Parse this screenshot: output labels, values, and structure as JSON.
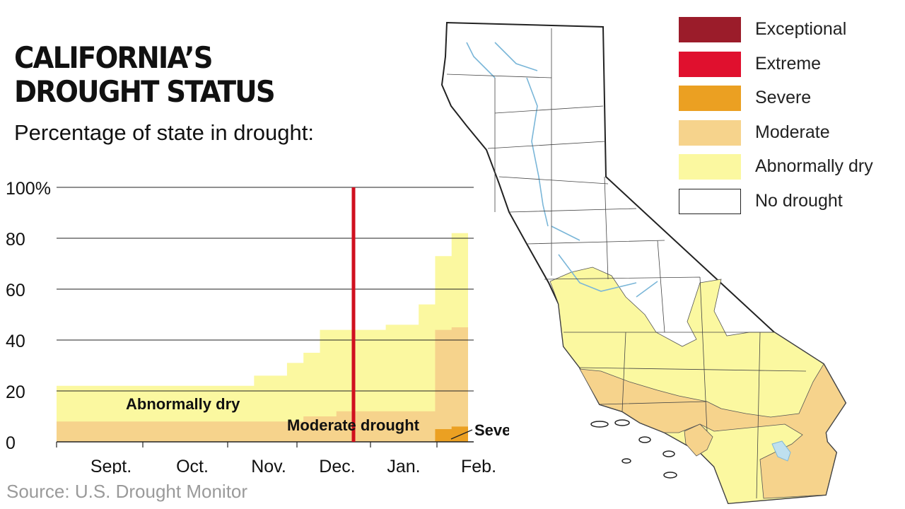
{
  "title_line1": "CALIFORNIA’S",
  "title_line2": "DROUGHT STATUS",
  "subtitle": "Percentage of state in drought:",
  "source": "Source: U.S. Drought Monitor",
  "legend": [
    {
      "label": "Exceptional",
      "color": "#9b1c2a"
    },
    {
      "label": "Extreme",
      "color": "#e0102e"
    },
    {
      "label": "Severe",
      "color": "#eba022"
    },
    {
      "label": "Moderate",
      "color": "#f6d38c"
    },
    {
      "label": "Abnormally dry",
      "color": "#fbf8a0"
    },
    {
      "label": "No drought",
      "color": "#ffffff"
    }
  ],
  "chart_data": {
    "type": "area",
    "y_ticks": [
      "0",
      "20",
      "40",
      "60",
      "80",
      "100%"
    ],
    "ylim": [
      0,
      100
    ],
    "x_tick_labels": [
      "Sept.",
      "Oct.",
      "Nov.",
      "Dec.",
      "Jan.",
      "Feb."
    ],
    "series": [
      {
        "name": "Abnormally dry",
        "color": "#fbf8a0",
        "values": [
          22,
          22,
          22,
          22,
          22,
          22,
          22,
          22,
          22,
          22,
          22,
          22,
          26,
          26,
          31,
          35,
          44,
          44,
          44,
          44,
          46,
          46,
          54,
          73,
          82
        ]
      },
      {
        "name": "Moderate drought",
        "color": "#f6d38c",
        "values": [
          8,
          8,
          8,
          8,
          8,
          8,
          8,
          8,
          8,
          8,
          8,
          8,
          8,
          8,
          8,
          10,
          10,
          12,
          12,
          12,
          12,
          12,
          12,
          44,
          45
        ]
      },
      {
        "name": "Severe",
        "color": "#eba022",
        "values": [
          0,
          0,
          0,
          0,
          0,
          0,
          0,
          0,
          0,
          0,
          0,
          0,
          0,
          0,
          0,
          0,
          0,
          0,
          0,
          0,
          0,
          0,
          0,
          5,
          6
        ]
      }
    ],
    "annotations": [
      {
        "text": "Abnormally dry"
      },
      {
        "text": "Moderate drought"
      },
      {
        "text": "Severe"
      }
    ],
    "marker_line": {
      "color": "#d0101f"
    },
    "grid": true
  }
}
